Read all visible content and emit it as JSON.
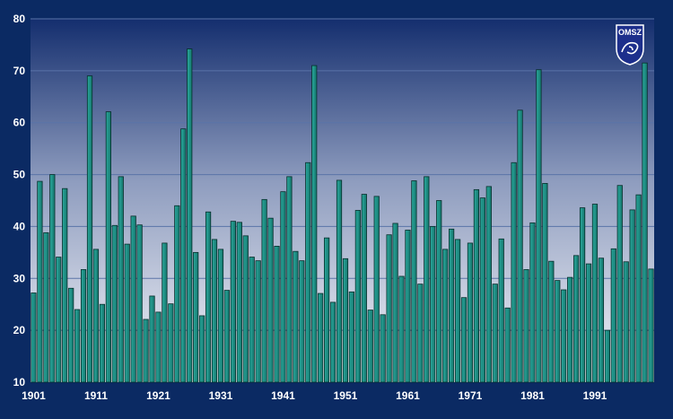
{
  "chart_data": {
    "type": "bar",
    "title": "",
    "xlabel": "",
    "ylabel": "",
    "ylim": [
      10,
      80
    ],
    "y_ticks": [
      10,
      20,
      30,
      40,
      50,
      60,
      70,
      80
    ],
    "x_tick_labels": [
      "1901",
      "1911",
      "1921",
      "1931",
      "1941",
      "1951",
      "1961",
      "1971",
      "1981",
      "1991"
    ],
    "grid": "horizontal",
    "x": [
      1901,
      1902,
      1903,
      1904,
      1905,
      1906,
      1907,
      1908,
      1909,
      1910,
      1911,
      1912,
      1913,
      1914,
      1915,
      1916,
      1917,
      1918,
      1919,
      1920,
      1921,
      1922,
      1923,
      1924,
      1925,
      1926,
      1927,
      1928,
      1929,
      1930,
      1931,
      1932,
      1933,
      1934,
      1935,
      1936,
      1937,
      1938,
      1939,
      1940,
      1941,
      1942,
      1943,
      1944,
      1945,
      1946,
      1947,
      1948,
      1949,
      1950,
      1951,
      1952,
      1953,
      1954,
      1955,
      1956,
      1957,
      1958,
      1959,
      1960,
      1961,
      1962,
      1963,
      1964,
      1965,
      1966,
      1967,
      1968,
      1969,
      1970,
      1971,
      1972,
      1973,
      1974,
      1975,
      1976,
      1977,
      1978,
      1979,
      1980,
      1981,
      1982,
      1983,
      1984,
      1985,
      1986,
      1987,
      1988,
      1989,
      1990,
      1991,
      1992,
      1993,
      1994,
      1995,
      1996,
      1997,
      1998,
      1999,
      2000
    ],
    "values": [
      27.2,
      48.7,
      38.8,
      50.0,
      34.1,
      47.3,
      28.1,
      24.0,
      31.7,
      69.0,
      35.6,
      25.0,
      62.1,
      40.2,
      49.6,
      36.6,
      42.0,
      40.3,
      22.1,
      26.6,
      23.5,
      36.8,
      25.1,
      44.0,
      58.8,
      74.2,
      35.0,
      22.8,
      42.8,
      37.5,
      35.6,
      27.7,
      41.0,
      40.8,
      38.2,
      34.1,
      33.4,
      45.2,
      41.6,
      36.2,
      46.7,
      49.6,
      35.2,
      33.4,
      52.3,
      71.0,
      27.1,
      37.8,
      25.4,
      48.9,
      33.8,
      27.4,
      43.1,
      46.2,
      23.9,
      45.8,
      23.0,
      38.4,
      40.6,
      30.4,
      39.3,
      48.8,
      28.9,
      49.6,
      40.0,
      45.0,
      35.6,
      39.5,
      37.5,
      26.3,
      36.8,
      47.1,
      45.5,
      47.7,
      28.9,
      37.6,
      24.3,
      52.3,
      62.4,
      31.7,
      40.7,
      70.2,
      48.3,
      33.3,
      29.6,
      27.8,
      30.2,
      34.4,
      43.6,
      32.8,
      44.3,
      33.9,
      20.0,
      35.7,
      47.9,
      33.2,
      43.2,
      46.1,
      71.5,
      31.8
    ],
    "colors": {
      "bar_fill": "#1c8a80",
      "bar_fill_light": "#2aa89c",
      "bar_outline": "#062e2a",
      "grid": "#5a74a8",
      "plot_bg_top": "#142e6e",
      "plot_bg_bottom": "#f4f5f9",
      "frame_bg": "#0b2a63"
    }
  },
  "logo": {
    "text": "OMSZ",
    "colors": {
      "fill": "#1d2f8c",
      "stroke": "#ffffff"
    }
  }
}
